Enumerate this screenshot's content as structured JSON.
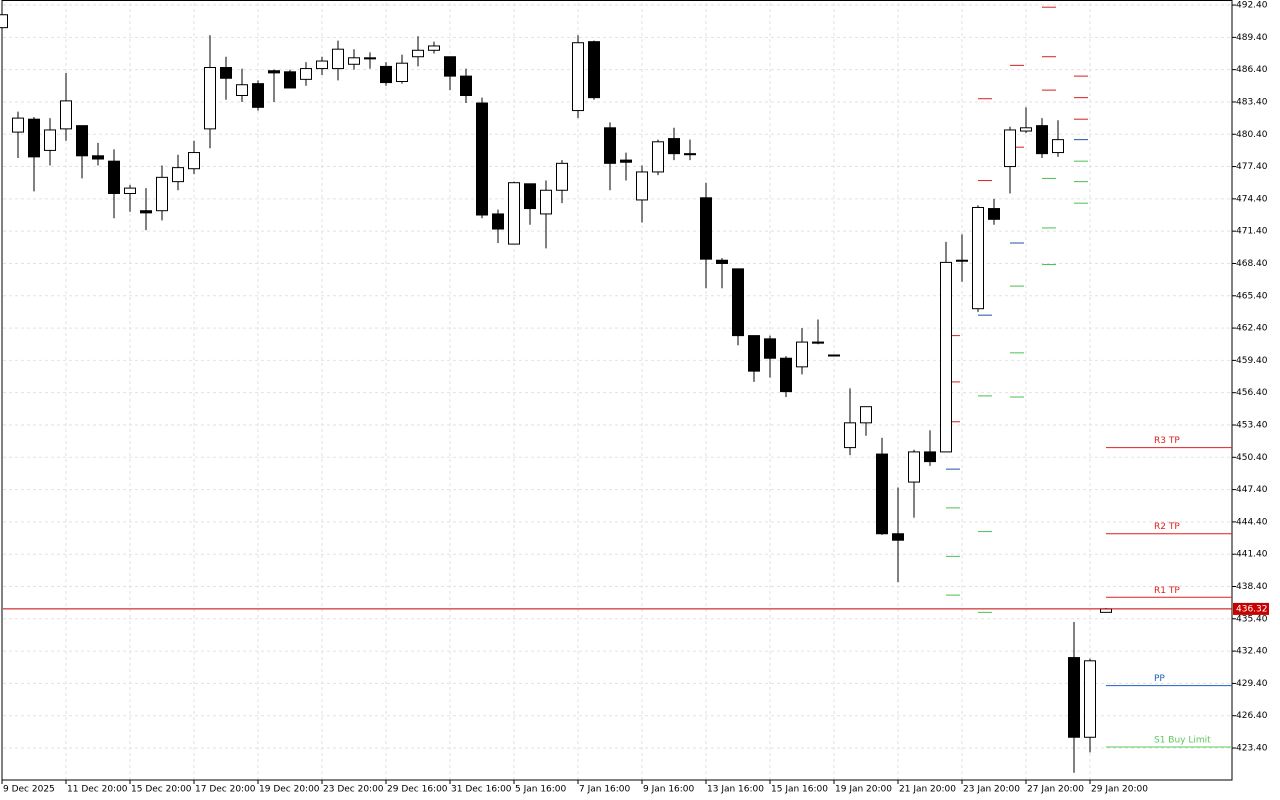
{
  "chart_data": {
    "type": "candlestick",
    "x": [
      "9 Dec 2025",
      null,
      null,
      null,
      "11 Dec 20:00",
      null,
      null,
      null,
      "15 Dec 20:00",
      null,
      null,
      null,
      "17 Dec 20:00",
      null,
      null,
      null,
      "19 Dec 20:00",
      null,
      null,
      null,
      "23 Dec 20:00",
      null,
      null,
      null,
      "29 Dec 16:00",
      null,
      null,
      null,
      "31 Dec 16:00",
      null,
      null,
      null,
      "5 Jan 16:00",
      null,
      null,
      null,
      "7 Jan 16:00",
      null,
      null,
      null,
      "9 Jan 16:00",
      null,
      null,
      null,
      "13 Jan 16:00",
      null,
      null,
      null,
      "15 Jan 16:00",
      null,
      null,
      null,
      "19 Jan 20:00",
      null,
      null,
      null,
      "21 Jan 20:00",
      null,
      null,
      null,
      "23 Jan 20:00",
      null,
      null,
      null,
      "27 Jan 20:00",
      null,
      null,
      null,
      "29 Jan 20:00",
      null
    ],
    "open": [
      490.3,
      480.6,
      481.8,
      478.9,
      480.9,
      481.2,
      478.4,
      477.9,
      474.9,
      473.3,
      473.3,
      476.0,
      477.2,
      480.9,
      486.6,
      484.0,
      485.1,
      486.3,
      486.2,
      485.5,
      486.5,
      486.5,
      486.9,
      487.5,
      486.7,
      485.3,
      487.6,
      488.2,
      487.6,
      485.8,
      483.3,
      473.0,
      470.2,
      475.8,
      473.0,
      475.2,
      482.6,
      489.0,
      481.0,
      478.0,
      474.3,
      476.9,
      480.0,
      478.6,
      474.5,
      468.7,
      467.9,
      461.7,
      461.4,
      459.6,
      458.8,
      461.1,
      459.9,
      451.3,
      453.6,
      450.7,
      443.3,
      448.1,
      450.9,
      450.9,
      468.7,
      464.2,
      473.5,
      477.4,
      480.7,
      481.2,
      478.7,
      431.8,
      424.4,
      436.0
    ],
    "high": [
      491.7,
      482.5,
      482.0,
      481.9,
      486.1,
      481.2,
      479.6,
      479.0,
      475.7,
      475.4,
      477.5,
      478.5,
      479.8,
      489.6,
      487.6,
      486.5,
      485.4,
      486.4,
      486.4,
      487.1,
      487.6,
      489.1,
      488.3,
      488.0,
      487.1,
      487.8,
      489.5,
      489.0,
      487.6,
      486.5,
      483.8,
      473.4,
      476.0,
      475.8,
      476.1,
      478.0,
      489.6,
      489.1,
      481.5,
      478.7,
      477.5,
      479.9,
      481.0,
      479.9,
      475.9,
      468.9,
      467.9,
      461.7,
      461.7,
      459.8,
      462.4,
      463.2,
      459.9,
      456.8,
      455.1,
      452.2,
      447.6,
      451.1,
      452.9,
      470.4,
      471.1,
      473.8,
      474.4,
      481.1,
      482.9,
      481.9,
      481.7,
      435.1,
      431.7,
      436.4
    ],
    "low": [
      490.1,
      478.2,
      475.1,
      477.5,
      479.8,
      476.3,
      477.5,
      472.6,
      473.2,
      471.5,
      472.4,
      475.2,
      476.7,
      479.1,
      483.6,
      483.4,
      482.6,
      483.4,
      484.7,
      484.9,
      485.9,
      485.4,
      486.4,
      486.5,
      484.9,
      485.1,
      486.7,
      487.9,
      484.5,
      483.3,
      472.6,
      470.3,
      470.2,
      472.0,
      469.8,
      474.0,
      481.9,
      483.6,
      475.2,
      476.1,
      472.2,
      476.6,
      478.0,
      478.0,
      466.1,
      466.1,
      460.8,
      457.4,
      457.8,
      456.0,
      458.1,
      460.9,
      459.9,
      450.6,
      452.4,
      443.2,
      438.8,
      444.8,
      449.6,
      450.9,
      466.7,
      463.9,
      472.0,
      474.9,
      480.5,
      478.2,
      478.3,
      421.1,
      423.0,
      436.0
    ],
    "close": [
      491.5,
      481.9,
      478.3,
      480.8,
      483.5,
      478.4,
      478.1,
      474.9,
      475.4,
      473.1,
      476.4,
      477.3,
      478.7,
      486.6,
      485.6,
      485.0,
      482.9,
      486.1,
      484.7,
      486.5,
      487.2,
      488.3,
      487.5,
      487.4,
      485.2,
      487.0,
      488.2,
      488.6,
      485.8,
      484.0,
      472.9,
      471.6,
      475.9,
      473.5,
      475.2,
      477.7,
      488.9,
      483.8,
      477.7,
      477.8,
      476.9,
      479.7,
      478.6,
      478.5,
      468.8,
      468.4,
      461.7,
      458.4,
      459.6,
      456.5,
      461.1,
      461.0,
      459.9,
      453.6,
      455.1,
      443.3,
      442.7,
      450.9,
      450.0,
      468.5,
      468.7,
      473.6,
      472.5,
      480.8,
      481.0,
      478.6,
      479.9,
      424.4,
      431.5,
      436.32
    ],
    "up_color": "#ffffff",
    "down_color": "#000000",
    "pivot_series": [
      {
        "color": "#d42020",
        "values": [
          null,
          null,
          null,
          null,
          null,
          null,
          null,
          null,
          null,
          null,
          null,
          null,
          null,
          null,
          null,
          null,
          null,
          null,
          null,
          null,
          null,
          null,
          null,
          null,
          null,
          null,
          null,
          null,
          null,
          null,
          null,
          null,
          null,
          null,
          null,
          null,
          null,
          null,
          null,
          null,
          null,
          null,
          null,
          null,
          null,
          null,
          null,
          null,
          null,
          null,
          null,
          null,
          null,
          null,
          null,
          null,
          null,
          null,
          null,
          461.7,
          null,
          null,
          null,
          null,
          null,
          492.2,
          null,
          485.8,
          null,
          null
        ]
      },
      {
        "color": "#d42020",
        "values": [
          null,
          null,
          null,
          null,
          null,
          null,
          null,
          null,
          null,
          null,
          null,
          null,
          null,
          null,
          null,
          null,
          null,
          null,
          null,
          null,
          null,
          null,
          null,
          null,
          null,
          null,
          null,
          null,
          null,
          null,
          null,
          null,
          null,
          null,
          null,
          null,
          null,
          null,
          null,
          null,
          null,
          null,
          null,
          null,
          null,
          null,
          null,
          null,
          null,
          null,
          null,
          null,
          null,
          null,
          null,
          null,
          null,
          null,
          null,
          457.4,
          null,
          483.7,
          null,
          486.8,
          null,
          487.6,
          null,
          483.8,
          null,
          null
        ]
      },
      {
        "color": "#d42020",
        "values": [
          null,
          null,
          null,
          null,
          null,
          null,
          null,
          null,
          null,
          null,
          null,
          null,
          null,
          null,
          null,
          null,
          null,
          null,
          null,
          null,
          null,
          null,
          null,
          null,
          null,
          null,
          null,
          null,
          null,
          null,
          null,
          null,
          null,
          null,
          null,
          null,
          null,
          null,
          null,
          null,
          null,
          null,
          null,
          null,
          null,
          null,
          null,
          null,
          null,
          null,
          null,
          null,
          null,
          null,
          null,
          null,
          null,
          null,
          null,
          453.7,
          null,
          476.1,
          null,
          479.2,
          null,
          484.5,
          null,
          481.8,
          null,
          null
        ]
      },
      {
        "color": "#2050a8",
        "values": [
          null,
          null,
          null,
          null,
          null,
          null,
          null,
          null,
          null,
          null,
          null,
          null,
          null,
          null,
          null,
          null,
          null,
          null,
          null,
          null,
          null,
          null,
          null,
          null,
          null,
          null,
          null,
          null,
          null,
          null,
          null,
          null,
          null,
          null,
          null,
          null,
          null,
          null,
          null,
          null,
          null,
          null,
          null,
          null,
          null,
          null,
          null,
          null,
          null,
          null,
          null,
          null,
          null,
          null,
          null,
          null,
          null,
          null,
          null,
          449.3,
          null,
          463.6,
          null,
          470.3,
          null,
          null,
          null,
          479.9,
          null,
          null
        ]
      },
      {
        "color": "#4cc04c",
        "values": [
          null,
          null,
          null,
          null,
          null,
          null,
          null,
          null,
          null,
          null,
          null,
          null,
          null,
          null,
          null,
          null,
          null,
          null,
          null,
          null,
          null,
          null,
          null,
          null,
          null,
          null,
          null,
          null,
          null,
          null,
          null,
          null,
          null,
          null,
          null,
          null,
          null,
          null,
          null,
          null,
          null,
          null,
          null,
          null,
          null,
          null,
          null,
          null,
          null,
          null,
          null,
          null,
          null,
          null,
          null,
          null,
          null,
          null,
          null,
          445.7,
          null,
          456.1,
          null,
          466.3,
          null,
          476.3,
          null,
          477.9,
          null,
          null
        ]
      },
      {
        "color": "#4cc04c",
        "values": [
          null,
          null,
          null,
          null,
          null,
          null,
          null,
          null,
          null,
          null,
          null,
          null,
          null,
          null,
          null,
          null,
          null,
          null,
          null,
          null,
          null,
          null,
          null,
          null,
          null,
          null,
          null,
          null,
          null,
          null,
          null,
          null,
          null,
          null,
          null,
          null,
          null,
          null,
          null,
          null,
          null,
          null,
          null,
          null,
          null,
          null,
          null,
          null,
          null,
          null,
          null,
          null,
          null,
          null,
          null,
          null,
          null,
          null,
          null,
          441.2,
          null,
          443.5,
          null,
          460.1,
          null,
          471.7,
          null,
          476.0,
          null,
          null
        ]
      },
      {
        "color": "#4cc04c",
        "values": [
          null,
          null,
          null,
          null,
          null,
          null,
          null,
          null,
          null,
          null,
          null,
          null,
          null,
          null,
          null,
          null,
          null,
          null,
          null,
          null,
          null,
          null,
          null,
          null,
          null,
          null,
          null,
          null,
          null,
          null,
          null,
          null,
          null,
          null,
          null,
          null,
          null,
          null,
          null,
          null,
          null,
          null,
          null,
          null,
          null,
          null,
          null,
          null,
          null,
          null,
          null,
          null,
          null,
          null,
          null,
          null,
          null,
          null,
          null,
          437.6,
          null,
          436.0,
          null,
          456.0,
          null,
          468.3,
          null,
          474.0,
          null,
          null
        ]
      }
    ],
    "level_lines": [
      {
        "label": "R3 TP",
        "value": 451.3,
        "color": "#e02020"
      },
      {
        "label": "R2 TP",
        "value": 443.3,
        "color": "#e02020"
      },
      {
        "label": "R1 TP",
        "value": 437.4,
        "color": "#e02020"
      },
      {
        "label": "PP",
        "value": 429.2,
        "color": "#1f5fbf"
      },
      {
        "label": "S1 Buy Limit",
        "value": 423.5,
        "color": "#5cc85c"
      }
    ],
    "current_price": 436.32,
    "current_color": "#c80000",
    "ylim": [
      420.43,
      492.59
    ],
    "yticks": [
      {
        "value": 492.4,
        "label": "492.40"
      },
      {
        "value": 489.4,
        "label": "489.40"
      },
      {
        "value": 486.4,
        "label": "486.40"
      },
      {
        "value": 483.4,
        "label": "483.40"
      },
      {
        "value": 480.4,
        "label": "480.40"
      },
      {
        "value": 477.4,
        "label": "477.40"
      },
      {
        "value": 474.4,
        "label": "474.40"
      },
      {
        "value": 471.4,
        "label": "471.40"
      },
      {
        "value": 468.4,
        "label": "468.40"
      },
      {
        "value": 465.4,
        "label": "465.40"
      },
      {
        "value": 462.4,
        "label": "462.40"
      },
      {
        "value": 459.4,
        "label": "459.40"
      },
      {
        "value": 456.4,
        "label": "456.40"
      },
      {
        "value": 453.4,
        "label": "453.40"
      },
      {
        "value": 450.4,
        "label": "450.40"
      },
      {
        "value": 447.4,
        "label": "447.40"
      },
      {
        "value": 444.4,
        "label": "444.40"
      },
      {
        "value": 441.4,
        "label": "441.40"
      },
      {
        "value": 438.4,
        "label": "438.40"
      },
      {
        "value": 435.4,
        "label": "435.40"
      },
      {
        "value": 432.4,
        "label": "432.40"
      },
      {
        "value": 429.4,
        "label": "429.40"
      },
      {
        "value": 426.4,
        "label": "426.40"
      },
      {
        "value": 423.4,
        "label": "423.40"
      }
    ],
    "grid": true
  }
}
